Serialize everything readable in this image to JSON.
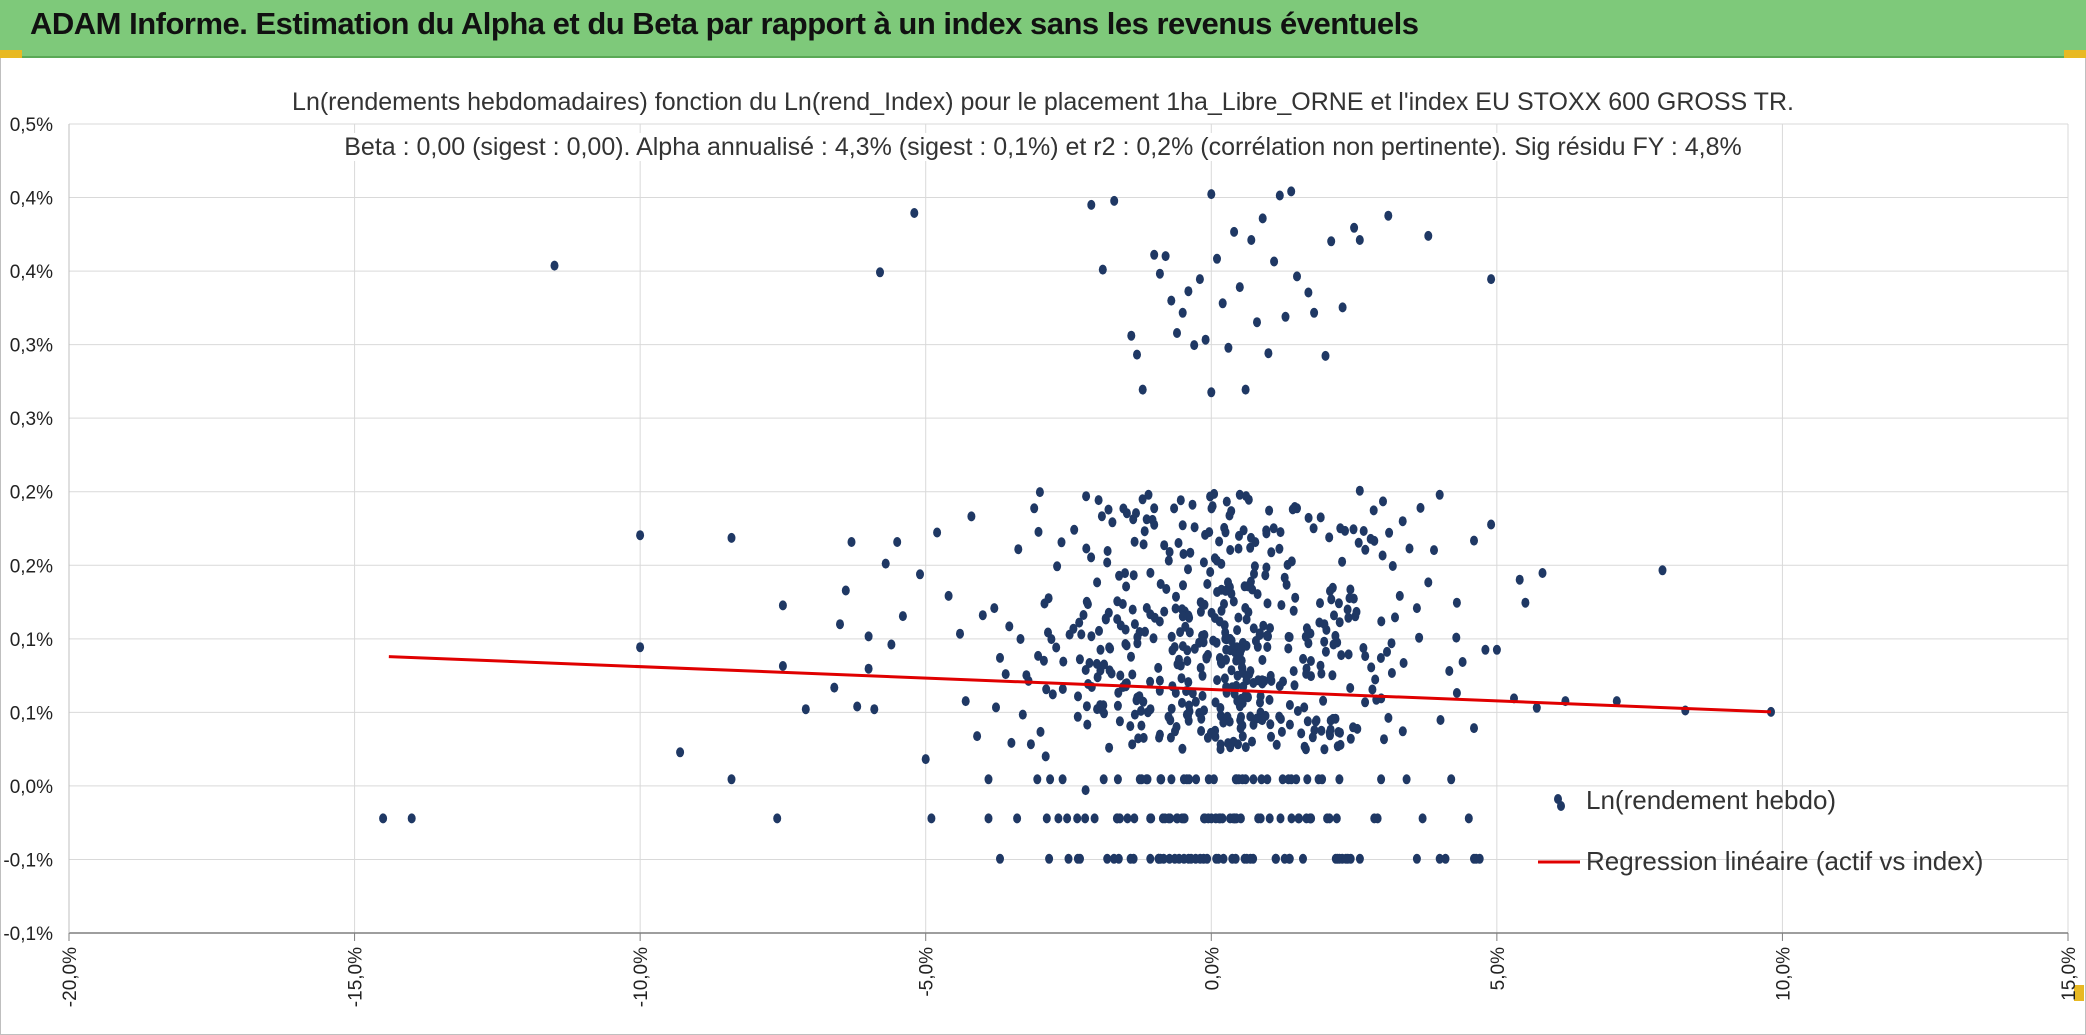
{
  "header": {
    "title": "ADAM Informe. Estimation du Alpha et du Beta par rapport à un index sans les revenus éventuels"
  },
  "colors": {
    "banner": "#7ec97a",
    "points": "#1f3864",
    "regression": "#e00000",
    "grid": "#d9d9d9"
  },
  "chart_data": {
    "type": "scatter",
    "title_line1": "Ln(rendements hebdomadaires) fonction du Ln(rend_Index) pour le placement 1ha_Libre_ORNE et l'index EU STOXX 600 GROSS TR.",
    "title_line2": "Beta : 0,00 (sigest : 0,00). Alpha annualisé : 4,3% (sigest : 0,1%) et r2 : 0,2% (corrélation non pertinente). Sig résidu FY : 4,8%",
    "xlabel": "",
    "ylabel": "",
    "xlim": [
      -20,
      15
    ],
    "ylim": [
      -0.1,
      0.5
    ],
    "grid": true,
    "legend_position": "bottom-right",
    "x_tick_labels": [
      "-20,0%",
      "-15,0%",
      "-10,0%",
      "-5,0%",
      "0,0%",
      "5,0%",
      "10,0%",
      "15,0%"
    ],
    "y_tick_labels": [
      "-0,1%",
      "-0,1%",
      "0,0%",
      "0,1%",
      "0,1%",
      "0,2%",
      "0,2%",
      "0,3%",
      "0,3%",
      "0,4%",
      "0,4%",
      "0,5%"
    ],
    "series": [
      {
        "name": "Ln(rendement hebdo)",
        "kind": "scatter",
        "points": [
          [
            -14.5,
            -0.015
          ],
          [
            -14.0,
            -0.015
          ],
          [
            -11.5,
            0.395
          ],
          [
            -10.0,
            0.195
          ],
          [
            -10.0,
            0.112
          ],
          [
            -9.3,
            0.034
          ],
          [
            -8.4,
            0.193
          ],
          [
            -8.4,
            0.014
          ],
          [
            -7.6,
            -0.015
          ],
          [
            -7.5,
            0.143
          ],
          [
            -7.5,
            0.098
          ],
          [
            -7.1,
            0.066
          ],
          [
            -6.6,
            0.082
          ],
          [
            -6.5,
            0.129
          ],
          [
            -6.4,
            0.154
          ],
          [
            -6.3,
            0.19
          ],
          [
            -6.2,
            0.068
          ],
          [
            -6.0,
            0.12
          ],
          [
            -6.0,
            0.096
          ],
          [
            -5.9,
            0.066
          ],
          [
            -5.8,
            0.39
          ],
          [
            -5.7,
            0.174
          ],
          [
            -5.6,
            0.114
          ],
          [
            -5.5,
            0.19
          ],
          [
            -5.4,
            0.135
          ],
          [
            -5.2,
            0.434
          ],
          [
            -5.1,
            0.166
          ],
          [
            -5.0,
            0.029
          ],
          [
            -4.9,
            -0.015
          ],
          [
            -4.8,
            0.197
          ],
          [
            -4.6,
            0.15
          ],
          [
            -4.4,
            0.122
          ],
          [
            -4.3,
            0.072
          ],
          [
            -4.2,
            0.209
          ],
          [
            -4.1,
            0.046
          ],
          [
            -3.9,
            -0.015
          ],
          [
            -3.9,
            0.014
          ],
          [
            -3.8,
            0.141
          ],
          [
            -3.7,
            0.104
          ],
          [
            -3.7,
            -0.045
          ],
          [
            -3.6,
            0.092
          ],
          [
            -3.5,
            0.041
          ],
          [
            -3.4,
            -0.015
          ],
          [
            -3.3,
            0.062
          ],
          [
            -3.2,
            0.087
          ],
          [
            -3.1,
            0.215
          ],
          [
            -3.0,
            0.227
          ],
          [
            -2.9,
            0.031
          ],
          [
            -2.8,
            0.118
          ],
          [
            -2.7,
            0.172
          ],
          [
            -2.6,
            0.081
          ],
          [
            -2.5,
            -0.045
          ],
          [
            -2.4,
            0.199
          ],
          [
            -2.3,
            0.103
          ],
          [
            -2.2,
            0.006
          ],
          [
            -2.1,
            0.44
          ],
          [
            -2.0,
            0.16
          ],
          [
            -1.9,
            0.392
          ],
          [
            -1.8,
            0.214
          ],
          [
            -1.7,
            0.443
          ],
          [
            -1.6,
            0.057
          ],
          [
            -1.5,
            0.125
          ],
          [
            -1.4,
            0.343
          ],
          [
            -1.3,
            0.329
          ],
          [
            -1.2,
            0.303
          ],
          [
            -1.1,
            0.225
          ],
          [
            -1.0,
            0.403
          ],
          [
            -0.9,
            0.389
          ],
          [
            -0.8,
            0.402
          ],
          [
            -0.7,
            0.369
          ],
          [
            -0.6,
            0.345
          ],
          [
            -0.5,
            0.36
          ],
          [
            -0.4,
            0.376
          ],
          [
            -0.3,
            0.336
          ],
          [
            -0.2,
            0.385
          ],
          [
            -0.1,
            0.34
          ],
          [
            0.0,
            0.448
          ],
          [
            0.0,
            0.301
          ],
          [
            0.1,
            0.4
          ],
          [
            0.2,
            0.367
          ],
          [
            0.3,
            0.334
          ],
          [
            0.4,
            0.42
          ],
          [
            0.5,
            0.379
          ],
          [
            0.6,
            0.303
          ],
          [
            0.7,
            0.414
          ],
          [
            0.8,
            0.353
          ],
          [
            0.9,
            0.43
          ],
          [
            1.0,
            0.33
          ],
          [
            1.1,
            0.398
          ],
          [
            1.2,
            0.447
          ],
          [
            1.3,
            0.357
          ],
          [
            1.4,
            0.45
          ],
          [
            1.5,
            0.387
          ],
          [
            1.7,
            0.375
          ],
          [
            1.8,
            0.36
          ],
          [
            2.0,
            0.328
          ],
          [
            2.1,
            0.413
          ],
          [
            2.3,
            0.364
          ],
          [
            2.5,
            0.423
          ],
          [
            2.6,
            0.414
          ],
          [
            3.1,
            0.432
          ],
          [
            3.8,
            0.417
          ],
          [
            4.9,
            0.385
          ],
          [
            -1.0,
            0.215
          ],
          [
            0.5,
            0.225
          ],
          [
            1.5,
            0.215
          ],
          [
            2.6,
            0.228
          ],
          [
            4.0,
            0.225
          ],
          [
            4.9,
            0.203
          ],
          [
            5.4,
            0.162
          ],
          [
            5.5,
            0.145
          ],
          [
            5.8,
            0.167
          ],
          [
            7.9,
            0.169
          ],
          [
            5.0,
            0.11
          ],
          [
            4.8,
            0.11
          ],
          [
            5.3,
            0.074
          ],
          [
            5.7,
            0.067
          ],
          [
            6.2,
            0.072
          ],
          [
            7.1,
            0.072
          ],
          [
            8.3,
            0.065
          ],
          [
            9.8,
            0.064
          ],
          [
            4.2,
            0.014
          ],
          [
            4.0,
            -0.045
          ],
          [
            4.1,
            -0.045
          ],
          [
            4.6,
            -0.045
          ],
          [
            4.7,
            -0.045
          ],
          [
            3.7,
            -0.015
          ],
          [
            3.6,
            -0.045
          ],
          [
            4.6,
            0.052
          ],
          [
            4.3,
            0.078
          ],
          [
            3.8,
            0.16
          ],
          [
            4.6,
            0.191
          ],
          [
            3.6,
            0.141
          ],
          [
            4.4,
            0.101
          ],
          [
            3.9,
            0.184
          ],
          [
            4.3,
            0.145
          ],
          [
            3.3,
            0.15
          ],
          [
            3.0,
            0.18
          ],
          [
            2.8,
            0.097
          ]
        ]
      },
      {
        "name": "Regression linéaire (actif vs index)",
        "kind": "line",
        "points": [
          [
            -14.4,
            0.105
          ],
          [
            9.8,
            0.064
          ]
        ]
      }
    ]
  }
}
